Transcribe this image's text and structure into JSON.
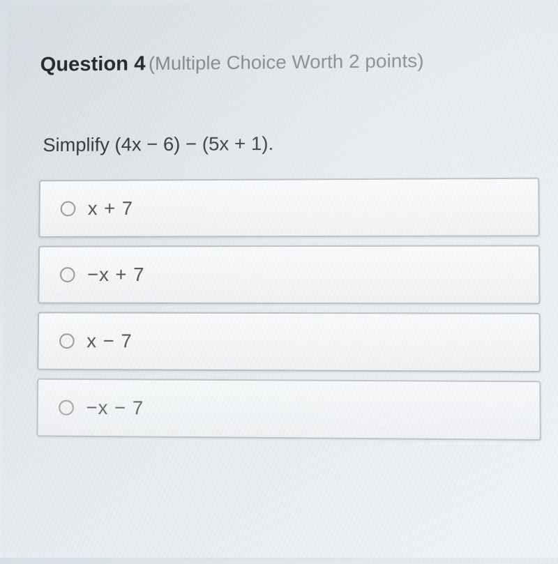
{
  "question": {
    "label": "Question 4",
    "meta": "(Multiple Choice Worth 2 points)",
    "prompt": "Simplify (4x − 6) − (5x + 1)."
  },
  "options": [
    {
      "text": "x + 7"
    },
    {
      "text": "−x + 7"
    },
    {
      "text": "x − 7"
    },
    {
      "text": "−x − 7"
    }
  ],
  "styling": {
    "background_gradient_start": "#d8dfe4",
    "background_gradient_end": "#f2f5f7",
    "question_label_color": "#2a2a2a",
    "question_meta_color": "#888888",
    "question_text_color": "#3a3a3a",
    "option_bg_top": "#fafbfc",
    "option_bg_bottom": "#f0f2f4",
    "option_border_color": "#b8bfc5",
    "option_text_color": "#555555",
    "radio_border_color": "#999999",
    "label_fontsize": 30,
    "meta_fontsize": 28,
    "prompt_fontsize": 28,
    "option_fontsize": 28
  }
}
